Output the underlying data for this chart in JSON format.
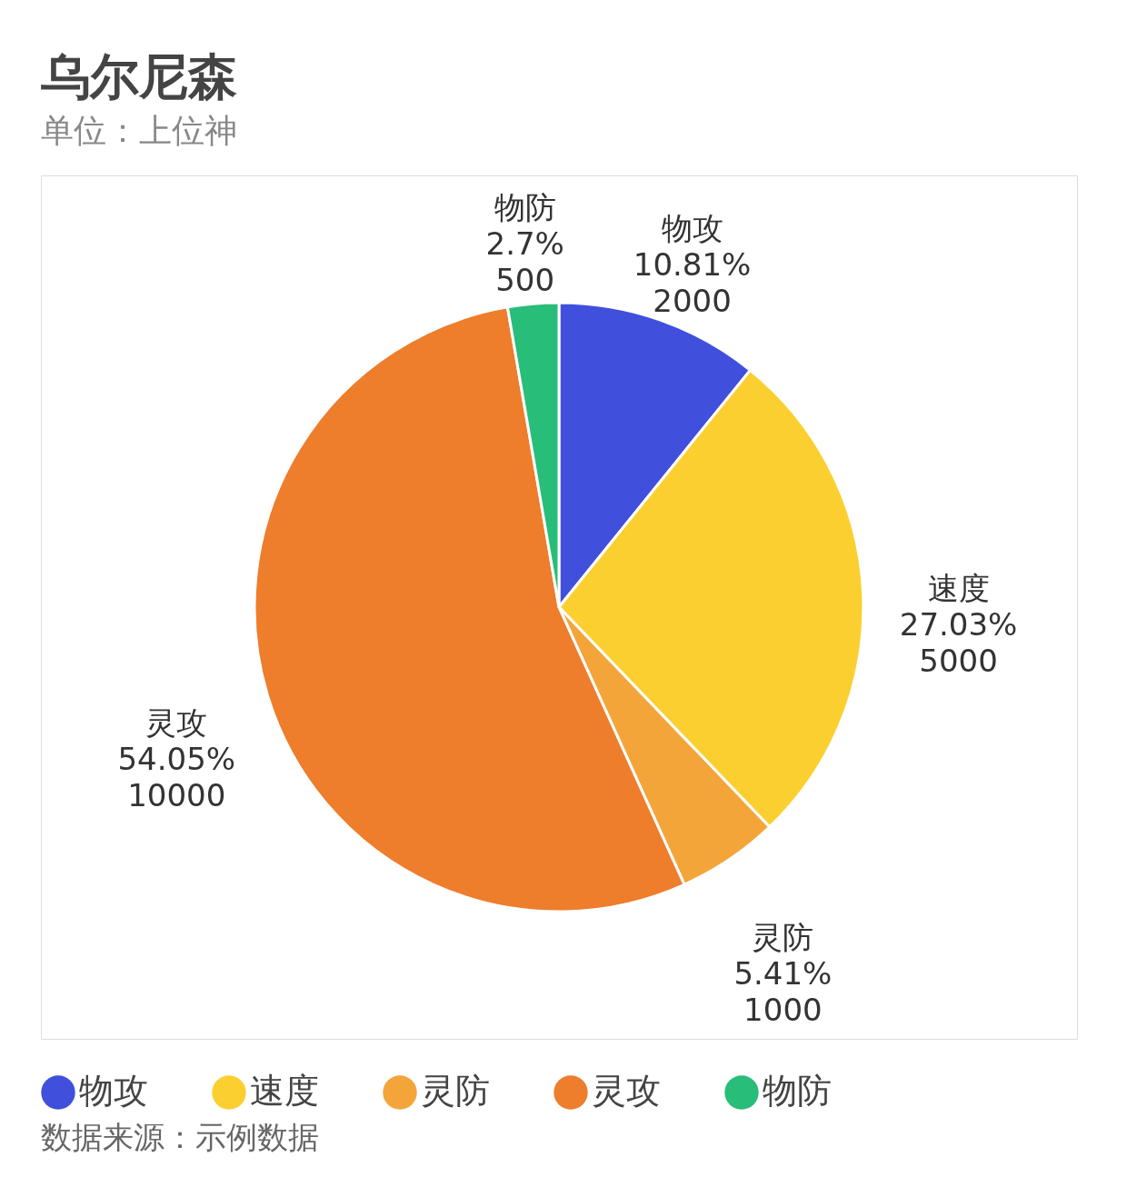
{
  "chart_data": {
    "type": "pie",
    "title": "乌尔尼森",
    "subtitle": "单位：上位神",
    "categories": [
      "物攻",
      "速度",
      "灵防",
      "灵攻",
      "物防"
    ],
    "values": [
      2000,
      5000,
      1000,
      10000,
      500
    ],
    "value_labels": [
      "10.81%\n2000",
      "27.03%\n5000",
      "5.41%\n1000",
      "54.05%\n10000",
      "2.7%\n500"
    ],
    "colors": [
      "#4050dc",
      "#fccf31",
      "#f4a53a",
      "#ee7d2c",
      "#28bd78"
    ],
    "legend": "bottom",
    "annotations": [
      "数据来源：示例数据"
    ]
  }
}
